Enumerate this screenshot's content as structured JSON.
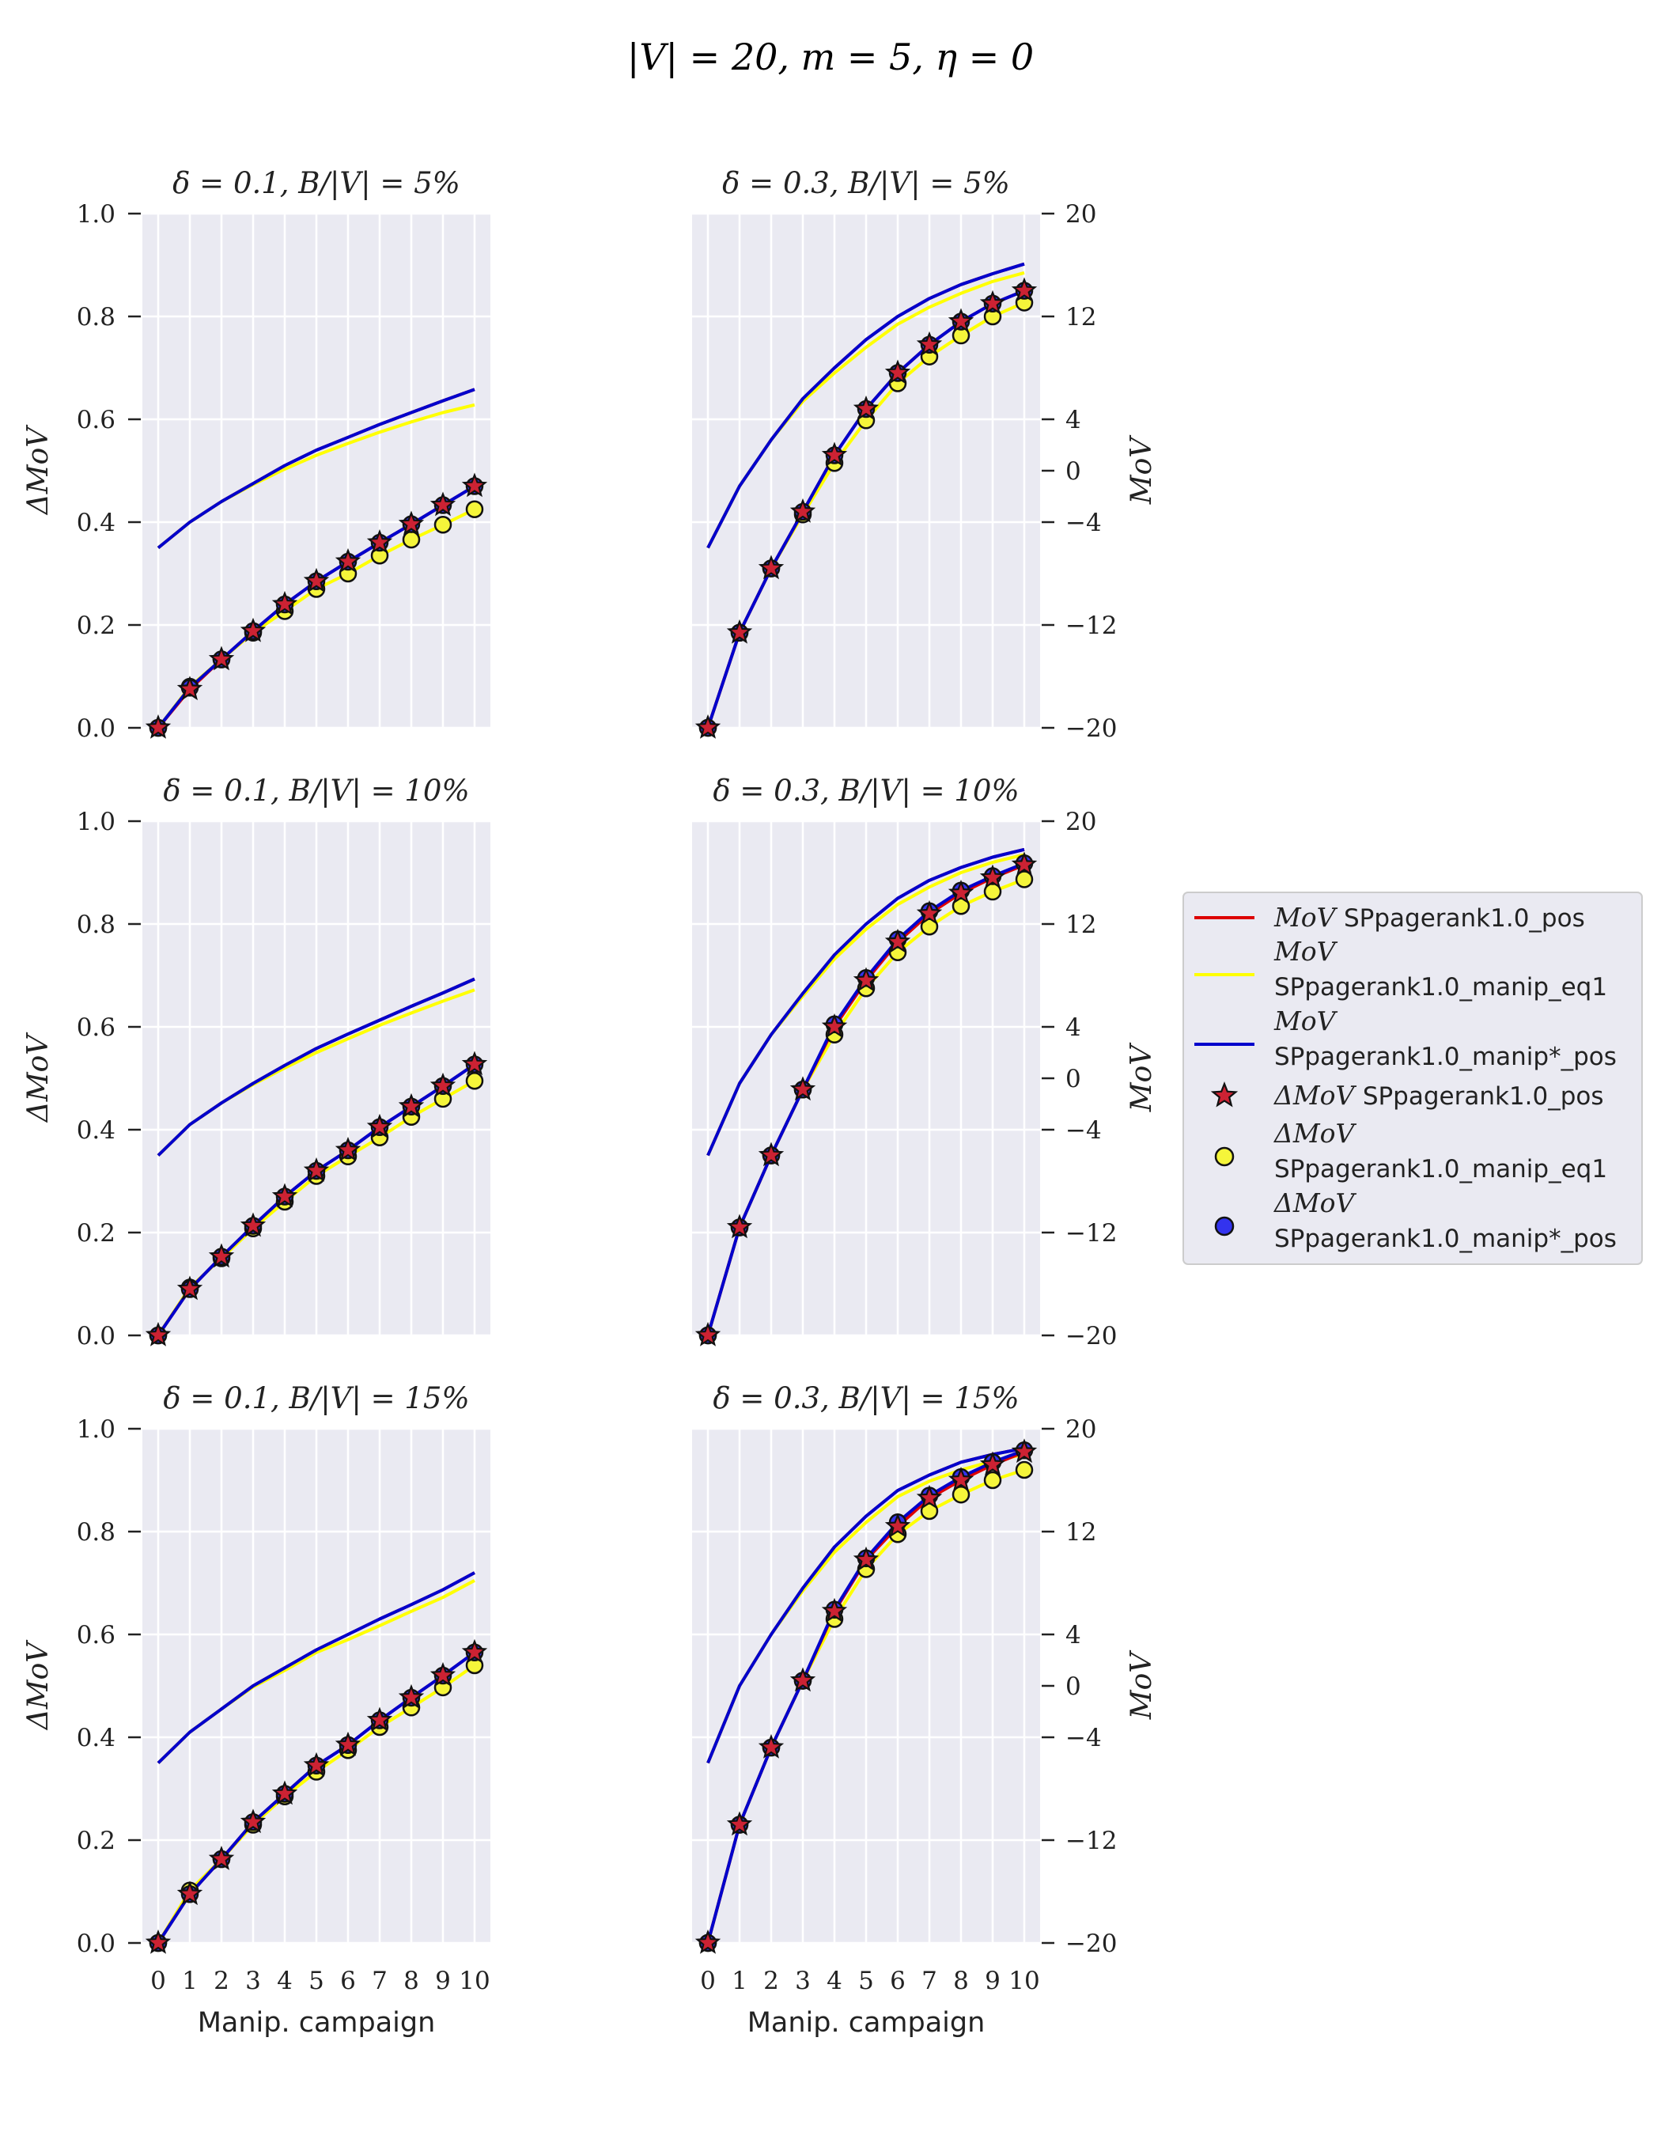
{
  "suptitle": "|V| = 20, m = 5, η = 0",
  "colors": {
    "pos": "#dd0000",
    "eq1": "#ffff00",
    "manip": "#0000cc",
    "star_fill": "#cc2233",
    "circle_eq1": "#f5f53a",
    "circle_manip": "#3333ee",
    "panel_bg": "#eaeaf2",
    "grid": "#ffffff"
  },
  "legend": {
    "entries": [
      {
        "kind": "line",
        "color": "#dd0000",
        "math": "MoV",
        "text": "SPpagerank1.0_pos"
      },
      {
        "kind": "line",
        "color": "#ffff00",
        "math": "MoV",
        "text": "SPpagerank1.0_manip_eq1"
      },
      {
        "kind": "line",
        "color": "#0000cc",
        "math": "MoV",
        "text": "SPpagerank1.0_manip*_pos"
      },
      {
        "kind": "star",
        "color": "#cc2233",
        "math": "ΔMoV",
        "text": "SPpagerank1.0_pos"
      },
      {
        "kind": "circle",
        "color": "#f5f53a",
        "math": "ΔMoV",
        "text": "SPpagerank1.0_manip_eq1"
      },
      {
        "kind": "circle",
        "color": "#3333ee",
        "math": "ΔMoV",
        "text": "SPpagerank1.0_manip*_pos"
      }
    ]
  },
  "chart_data": [
    {
      "type": "line",
      "title": "δ = 0.1, B/|V| = 5%",
      "xlabel": "",
      "ylabel": "ΔMoV",
      "y2label": "",
      "x": [
        0,
        1,
        2,
        3,
        4,
        5,
        6,
        7,
        8,
        9,
        10
      ],
      "ylim": [
        0,
        1
      ],
      "y2lim": [
        -20,
        20
      ],
      "yticks": [
        "0.0",
        "0.2",
        "0.4",
        "0.6",
        "0.8",
        "1.0"
      ],
      "y2ticks": [],
      "mov_pos": [
        0.35,
        0.4,
        0.44,
        0.475,
        0.51,
        0.54,
        0.565,
        0.59,
        0.613,
        0.636,
        0.658
      ],
      "mov_eq1": [
        0.35,
        0.4,
        0.44,
        0.473,
        0.503,
        0.53,
        0.553,
        0.575,
        0.595,
        0.613,
        0.628
      ],
      "mov_manip": [
        0.35,
        0.4,
        0.44,
        0.475,
        0.51,
        0.54,
        0.565,
        0.59,
        0.613,
        0.636,
        0.658
      ],
      "dmov_pos": [
        0,
        0.075,
        0.133,
        0.188,
        0.24,
        0.285,
        0.323,
        0.36,
        0.396,
        0.433,
        0.47
      ],
      "dmov_eq1": [
        0,
        0.08,
        0.133,
        0.185,
        0.227,
        0.27,
        0.3,
        0.335,
        0.366,
        0.395,
        0.425
      ],
      "dmov_manip": [
        0,
        0.078,
        0.133,
        0.188,
        0.24,
        0.285,
        0.323,
        0.36,
        0.396,
        0.433,
        0.47
      ]
    },
    {
      "type": "line",
      "title": "δ = 0.3, B/|V| = 5%",
      "xlabel": "",
      "ylabel": "",
      "y2label": "MoV",
      "x": [
        0,
        1,
        2,
        3,
        4,
        5,
        6,
        7,
        8,
        9,
        10
      ],
      "ylim": [
        0,
        1
      ],
      "y2lim": [
        -20,
        20
      ],
      "yticks": [],
      "y2ticks": [
        "−20",
        "−12",
        "−4",
        "0",
        "4",
        "12",
        "20"
      ],
      "mov_pos": [
        0.35,
        0.47,
        0.56,
        0.64,
        0.7,
        0.755,
        0.8,
        0.835,
        0.862,
        0.883,
        0.902
      ],
      "mov_eq1": [
        0.35,
        0.47,
        0.56,
        0.635,
        0.69,
        0.74,
        0.785,
        0.818,
        0.845,
        0.868,
        0.885
      ],
      "mov_manip": [
        0.35,
        0.47,
        0.56,
        0.64,
        0.7,
        0.755,
        0.8,
        0.835,
        0.862,
        0.883,
        0.902
      ],
      "dmov_pos": [
        0,
        0.185,
        0.31,
        0.42,
        0.53,
        0.62,
        0.69,
        0.745,
        0.79,
        0.825,
        0.85
      ],
      "dmov_eq1": [
        0,
        0.185,
        0.31,
        0.415,
        0.515,
        0.598,
        0.67,
        0.722,
        0.763,
        0.8,
        0.827
      ],
      "dmov_manip": [
        0,
        0.185,
        0.31,
        0.42,
        0.53,
        0.62,
        0.69,
        0.745,
        0.79,
        0.825,
        0.85
      ]
    },
    {
      "type": "line",
      "title": "δ = 0.1, B/|V| = 10%",
      "xlabel": "",
      "ylabel": "ΔMoV",
      "y2label": "",
      "x": [
        0,
        1,
        2,
        3,
        4,
        5,
        6,
        7,
        8,
        9,
        10
      ],
      "ylim": [
        0,
        1
      ],
      "y2lim": [
        -20,
        20
      ],
      "yticks": [
        "0.0",
        "0.2",
        "0.4",
        "0.6",
        "0.8",
        "1.0"
      ],
      "y2ticks": [],
      "mov_pos": [
        0.35,
        0.41,
        0.452,
        0.49,
        0.525,
        0.558,
        0.586,
        0.613,
        0.64,
        0.666,
        0.693
      ],
      "mov_eq1": [
        0.35,
        0.41,
        0.452,
        0.488,
        0.52,
        0.55,
        0.577,
        0.603,
        0.627,
        0.65,
        0.672
      ],
      "mov_manip": [
        0.35,
        0.41,
        0.452,
        0.49,
        0.525,
        0.558,
        0.586,
        0.613,
        0.64,
        0.666,
        0.693
      ],
      "dmov_pos": [
        0,
        0.09,
        0.153,
        0.213,
        0.27,
        0.32,
        0.36,
        0.405,
        0.445,
        0.485,
        0.527
      ],
      "dmov_eq1": [
        0,
        0.093,
        0.15,
        0.208,
        0.26,
        0.31,
        0.348,
        0.385,
        0.425,
        0.46,
        0.495
      ],
      "dmov_manip": [
        0,
        0.09,
        0.153,
        0.213,
        0.27,
        0.32,
        0.36,
        0.405,
        0.445,
        0.485,
        0.527
      ]
    },
    {
      "type": "line",
      "title": "δ = 0.3, B/|V| = 10%",
      "xlabel": "",
      "ylabel": "",
      "y2label": "MoV",
      "x": [
        0,
        1,
        2,
        3,
        4,
        5,
        6,
        7,
        8,
        9,
        10
      ],
      "ylim": [
        0,
        1
      ],
      "y2lim": [
        -20,
        20
      ],
      "yticks": [],
      "y2ticks": [
        "−20",
        "−12",
        "−4",
        "0",
        "4",
        "12",
        "20"
      ],
      "mov_pos": [
        0.35,
        0.49,
        0.585,
        0.665,
        0.74,
        0.8,
        0.85,
        0.885,
        0.91,
        0.93,
        0.945
      ],
      "mov_eq1": [
        0.35,
        0.49,
        0.585,
        0.66,
        0.732,
        0.79,
        0.838,
        0.872,
        0.9,
        0.92,
        0.935
      ],
      "mov_manip": [
        0.35,
        0.49,
        0.585,
        0.665,
        0.74,
        0.8,
        0.85,
        0.885,
        0.91,
        0.93,
        0.945
      ],
      "dmov_pos": [
        0,
        0.21,
        0.35,
        0.478,
        0.6,
        0.69,
        0.765,
        0.82,
        0.86,
        0.89,
        0.915
      ],
      "dmov_eq1": [
        0,
        0.21,
        0.35,
        0.478,
        0.585,
        0.675,
        0.745,
        0.795,
        0.835,
        0.863,
        0.887
      ],
      "dmov_manip": [
        0,
        0.21,
        0.35,
        0.478,
        0.605,
        0.695,
        0.77,
        0.825,
        0.865,
        0.893,
        0.918
      ]
    },
    {
      "type": "line",
      "title": "δ = 0.1, B/|V| = 15%",
      "xlabel": "Manip. campaign",
      "ylabel": "ΔMoV",
      "y2label": "",
      "x": [
        0,
        1,
        2,
        3,
        4,
        5,
        6,
        7,
        8,
        9,
        10
      ],
      "ylim": [
        0,
        1
      ],
      "y2lim": [
        -20,
        20
      ],
      "yticks": [
        "0.0",
        "0.2",
        "0.4",
        "0.6",
        "0.8",
        "1.0"
      ],
      "y2ticks": [],
      "mov_pos": [
        0.35,
        0.41,
        0.455,
        0.5,
        0.535,
        0.57,
        0.6,
        0.63,
        0.658,
        0.687,
        0.72
      ],
      "mov_eq1": [
        0.35,
        0.41,
        0.455,
        0.498,
        0.53,
        0.565,
        0.59,
        0.617,
        0.645,
        0.672,
        0.705
      ],
      "mov_manip": [
        0.35,
        0.41,
        0.455,
        0.5,
        0.535,
        0.57,
        0.6,
        0.63,
        0.658,
        0.687,
        0.72
      ],
      "dmov_pos": [
        0,
        0.095,
        0.163,
        0.235,
        0.29,
        0.345,
        0.385,
        0.433,
        0.477,
        0.52,
        0.565
      ],
      "dmov_eq1": [
        0,
        0.102,
        0.163,
        0.23,
        0.285,
        0.333,
        0.375,
        0.42,
        0.458,
        0.497,
        0.54
      ],
      "dmov_manip": [
        0,
        0.095,
        0.163,
        0.235,
        0.29,
        0.345,
        0.385,
        0.433,
        0.477,
        0.52,
        0.565
      ]
    },
    {
      "type": "line",
      "title": "δ = 0.3, B/|V| = 15%",
      "xlabel": "Manip. campaign",
      "ylabel": "",
      "y2label": "MoV",
      "x": [
        0,
        1,
        2,
        3,
        4,
        5,
        6,
        7,
        8,
        9,
        10
      ],
      "ylim": [
        0,
        1
      ],
      "y2lim": [
        -20,
        20
      ],
      "yticks": [],
      "y2ticks": [
        "−20",
        "−12",
        "−4",
        "0",
        "4",
        "12",
        "20"
      ],
      "mov_pos": [
        0.35,
        0.5,
        0.6,
        0.69,
        0.77,
        0.83,
        0.88,
        0.91,
        0.935,
        0.95,
        0.962
      ],
      "mov_eq1": [
        0.35,
        0.5,
        0.6,
        0.685,
        0.76,
        0.818,
        0.868,
        0.898,
        0.92,
        0.937,
        0.95
      ],
      "mov_manip": [
        0.35,
        0.5,
        0.6,
        0.69,
        0.77,
        0.83,
        0.88,
        0.91,
        0.935,
        0.95,
        0.962
      ],
      "dmov_pos": [
        0,
        0.23,
        0.38,
        0.51,
        0.645,
        0.745,
        0.81,
        0.865,
        0.9,
        0.93,
        0.955
      ],
      "dmov_eq1": [
        0,
        0.23,
        0.38,
        0.51,
        0.63,
        0.727,
        0.795,
        0.84,
        0.872,
        0.9,
        0.92
      ],
      "dmov_manip": [
        0,
        0.23,
        0.38,
        0.51,
        0.648,
        0.748,
        0.818,
        0.87,
        0.906,
        0.935,
        0.958
      ]
    }
  ]
}
